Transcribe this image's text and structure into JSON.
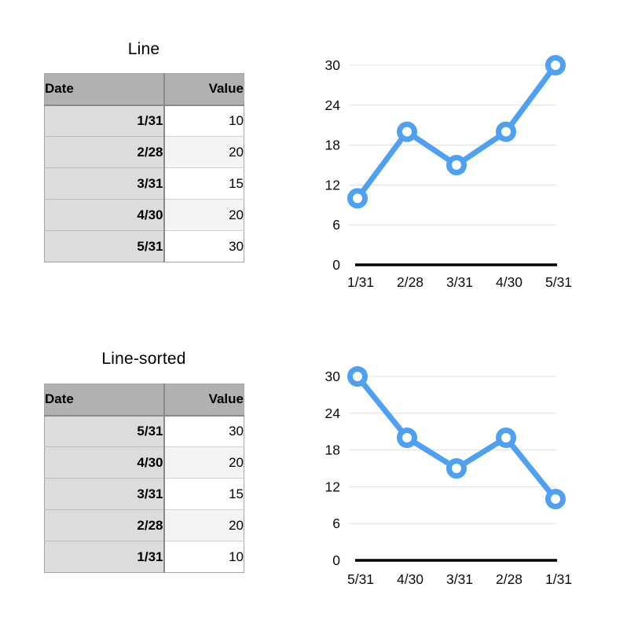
{
  "page": {
    "background": "#ffffff"
  },
  "colors": {
    "line_blue": "#4da0f2",
    "gridline": "#e0e0e0",
    "axis": "#000000",
    "table_header_bg": "#b1b1b1",
    "date_cell_bg": "#dcdcdc",
    "alt_value_row_bg": "#f4f4f4",
    "marker_fill": "#ffffff"
  },
  "sections": [
    {
      "title": "Line",
      "table": {
        "columns": [
          "Date",
          "Value"
        ],
        "rows": [
          [
            "1/31",
            "10"
          ],
          [
            "2/28",
            "20"
          ],
          [
            "3/31",
            "15"
          ],
          [
            "4/30",
            "20"
          ],
          [
            "5/31",
            "30"
          ]
        ]
      }
    },
    {
      "title": "Line-sorted",
      "table": {
        "columns": [
          "Date",
          "Value"
        ],
        "rows": [
          [
            "5/31",
            "30"
          ],
          [
            "4/30",
            "20"
          ],
          [
            "3/31",
            "15"
          ],
          [
            "2/28",
            "20"
          ],
          [
            "1/31",
            "10"
          ]
        ]
      }
    }
  ],
  "chart_data": [
    {
      "type": "line",
      "title": "Line",
      "categories": [
        "1/31",
        "2/28",
        "3/31",
        "4/30",
        "5/31"
      ],
      "values": [
        10,
        20,
        15,
        20,
        30
      ],
      "xlabel": "",
      "ylabel": "",
      "ylim": [
        0,
        30
      ],
      "yticks": [
        0,
        6,
        12,
        18,
        24,
        30
      ],
      "grid": true,
      "legend": false,
      "line_color": "#4da0f2",
      "marker": "open-circle"
    },
    {
      "type": "line",
      "title": "Line-sorted",
      "categories": [
        "5/31",
        "4/30",
        "3/31",
        "2/28",
        "1/31"
      ],
      "values": [
        30,
        20,
        15,
        20,
        10
      ],
      "xlabel": "",
      "ylabel": "",
      "ylim": [
        0,
        30
      ],
      "yticks": [
        0,
        6,
        12,
        18,
        24,
        30
      ],
      "grid": true,
      "legend": false,
      "line_color": "#4da0f2",
      "marker": "open-circle"
    }
  ]
}
